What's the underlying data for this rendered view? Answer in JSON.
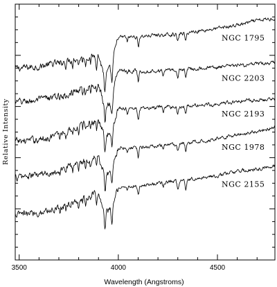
{
  "chart_data": {
    "type": "line",
    "title": "",
    "xlabel": "Wavelength (Angstroms)",
    "ylabel": "Relative Intensity",
    "xlim": [
      3480,
      4790
    ],
    "ylim": [
      0,
      1
    ],
    "x_ticks": [
      3500,
      4000,
      4500
    ],
    "y_axis_numbered": false,
    "grid": false,
    "legend": "inline labels to the right of each spectrum",
    "absorption_features_angstrom": [
      3705,
      3735,
      3770,
      3800,
      3820,
      3835,
      3860,
      3890,
      3933,
      3968,
      4045,
      4101,
      4226,
      4300,
      4340
    ],
    "series": [
      {
        "name": "NGC 1795",
        "x": [
          3480,
          3600,
          3700,
          3800,
          3900,
          3930,
          3960,
          4000,
          4100,
          4200,
          4300,
          4400,
          4500,
          4600,
          4700,
          4790
        ],
        "y": [
          0.748,
          0.757,
          0.77,
          0.79,
          0.8,
          0.72,
          0.745,
          0.87,
          0.873,
          0.88,
          0.883,
          0.895,
          0.905,
          0.918,
          0.935,
          0.945
        ]
      },
      {
        "name": "NGC 2203",
        "x": [
          3480,
          3600,
          3700,
          3800,
          3900,
          3930,
          3960,
          4000,
          4100,
          4200,
          4300,
          4400,
          4500,
          4600,
          4700,
          4790
        ],
        "y": [
          0.615,
          0.625,
          0.64,
          0.665,
          0.69,
          0.605,
          0.615,
          0.745,
          0.738,
          0.74,
          0.745,
          0.75,
          0.753,
          0.76,
          0.765,
          0.77
        ]
      },
      {
        "name": "NGC 2193",
        "x": [
          3480,
          3600,
          3700,
          3800,
          3900,
          3930,
          3960,
          4000,
          4100,
          4200,
          4300,
          4400,
          4500,
          4600,
          4700,
          4790
        ],
        "y": [
          0.463,
          0.47,
          0.49,
          0.525,
          0.55,
          0.485,
          0.495,
          0.595,
          0.59,
          0.595,
          0.6,
          0.605,
          0.61,
          0.62,
          0.625,
          0.63
        ]
      },
      {
        "name": "NGC 1978",
        "x": [
          3480,
          3600,
          3700,
          3800,
          3900,
          3930,
          3960,
          4000,
          4100,
          4200,
          4300,
          4400,
          4500,
          4600,
          4700,
          4790
        ],
        "y": [
          0.322,
          0.332,
          0.35,
          0.38,
          0.405,
          0.335,
          0.345,
          0.44,
          0.44,
          0.445,
          0.452,
          0.463,
          0.475,
          0.49,
          0.503,
          0.52
        ]
      },
      {
        "name": "NGC 2155",
        "x": [
          3480,
          3600,
          3700,
          3800,
          3900,
          3930,
          3960,
          4000,
          4100,
          4200,
          4300,
          4400,
          4500,
          4600,
          4700,
          4790
        ],
        "y": [
          0.175,
          0.185,
          0.205,
          0.235,
          0.26,
          0.185,
          0.195,
          0.285,
          0.29,
          0.3,
          0.31,
          0.32,
          0.33,
          0.345,
          0.355,
          0.368
        ]
      }
    ]
  }
}
